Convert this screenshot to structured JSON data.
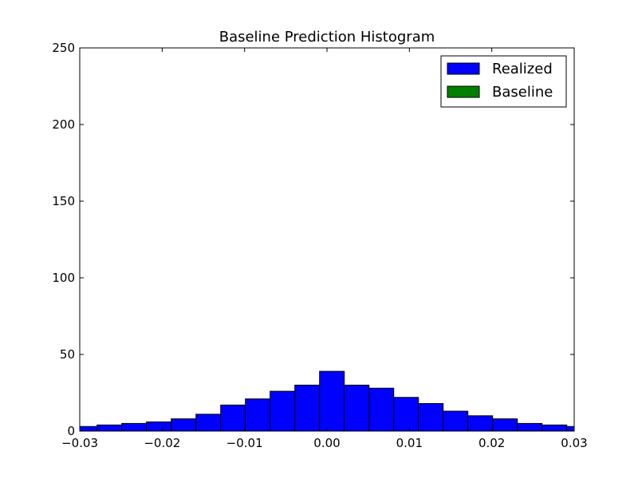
{
  "chart_data": {
    "type": "bar",
    "title": "Baseline Prediction Histogram",
    "xlabel": "",
    "ylabel": "",
    "xlim": [
      -0.03,
      0.03
    ],
    "ylim": [
      0,
      250
    ],
    "grid": false,
    "legend_position": "top-right",
    "x_ticks": [
      {
        "value": -0.03,
        "label": "−0.03"
      },
      {
        "value": -0.02,
        "label": "−0.02"
      },
      {
        "value": -0.01,
        "label": "−0.01"
      },
      {
        "value": 0.0,
        "label": "0.00"
      },
      {
        "value": 0.01,
        "label": "0.01"
      },
      {
        "value": 0.02,
        "label": "0.02"
      },
      {
        "value": 0.03,
        "label": "0.03"
      }
    ],
    "y_ticks": [
      {
        "value": 0,
        "label": "0"
      },
      {
        "value": 50,
        "label": "50"
      },
      {
        "value": 100,
        "label": "100"
      },
      {
        "value": 150,
        "label": "150"
      },
      {
        "value": 200,
        "label": "200"
      },
      {
        "value": 250,
        "label": "250"
      }
    ],
    "series": [
      {
        "name": "Realized",
        "color": "#0000ff",
        "bin_edges": [
          -0.0309,
          -0.0279,
          -0.0249,
          -0.0219,
          -0.0189,
          -0.0159,
          -0.0129,
          -0.0099,
          -0.0069,
          -0.0039,
          -0.0009,
          0.0021,
          0.0051,
          0.0081,
          0.0111,
          0.0141,
          0.0171,
          0.0201,
          0.0231,
          0.0261,
          0.0291,
          0.0321
        ],
        "counts": [
          3,
          4,
          5,
          6,
          8,
          11,
          17,
          21,
          26,
          30,
          39,
          30,
          28,
          22,
          18,
          13,
          10,
          8,
          5,
          4,
          3
        ]
      },
      {
        "name": "Baseline",
        "color": "#008000",
        "bin_edges": [],
        "counts": []
      }
    ]
  }
}
